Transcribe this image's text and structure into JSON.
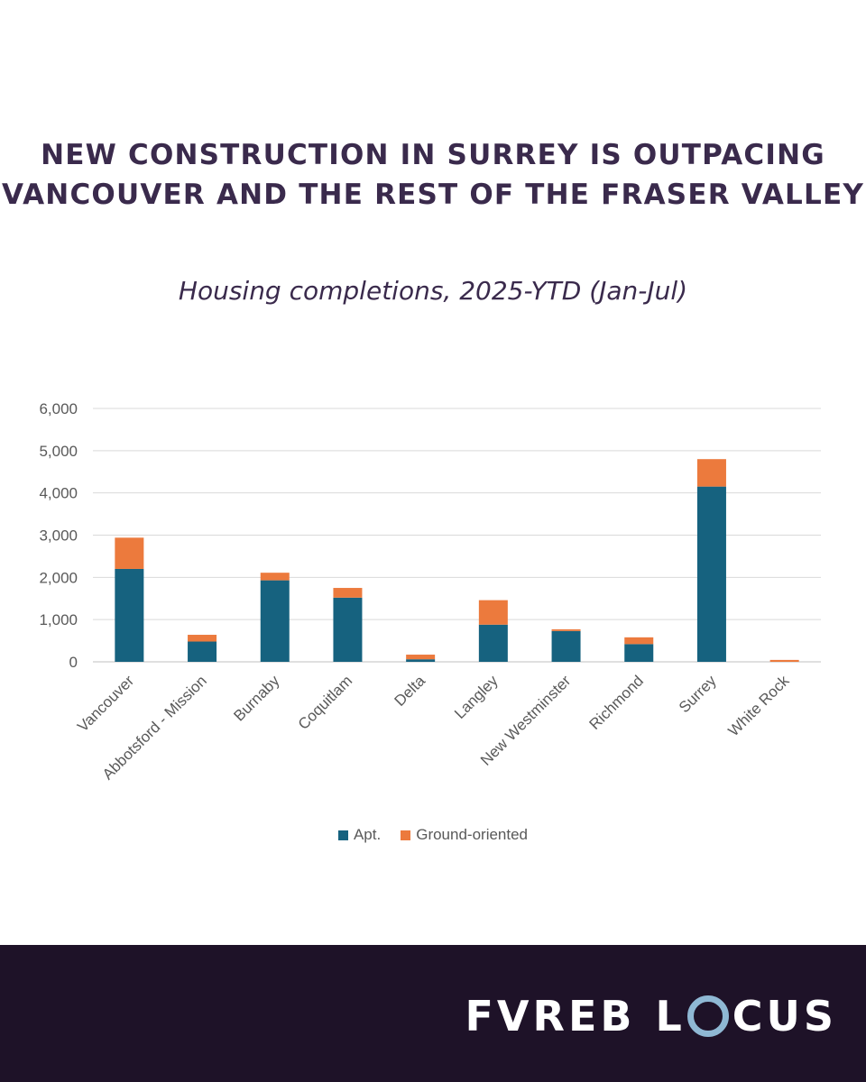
{
  "headline": {
    "line1": "NEW CONSTRUCTION IN SURREY IS OUTPACING",
    "line2": "VANCOUVER AND THE REST OF THE FRASER VALLEY"
  },
  "colors": {
    "apt": "#16627f",
    "ground": "#ec7a3d",
    "grid": "#d9d9d9",
    "axis_text": "#595959",
    "title_text": "#3a2a4c",
    "footer_bg": "#1e1228",
    "logo_accent": "#8fb8d4"
  },
  "chart_data": {
    "type": "bar",
    "stacked": true,
    "title": "Housing completions, 2025-YTD (Jan-Jul)",
    "xlabel": "",
    "ylabel": "",
    "ylim": [
      0,
      6000
    ],
    "yticks": [
      0,
      1000,
      2000,
      3000,
      4000,
      5000,
      6000
    ],
    "ytick_labels": [
      "0",
      "1,000",
      "2,000",
      "3,000",
      "4,000",
      "5,000",
      "6,000"
    ],
    "grid": true,
    "legend_position": "bottom",
    "categories": [
      "Vancouver",
      "Abbotsford - Mission",
      "Burnaby",
      "Coquitlam",
      "Delta",
      "Langley",
      "New Westminster",
      "Richmond",
      "Surrey",
      "White Rock"
    ],
    "series": [
      {
        "name": "Apt.",
        "values": [
          2200,
          480,
          1930,
          1520,
          60,
          880,
          730,
          420,
          4150,
          0
        ]
      },
      {
        "name": "Ground-oriented",
        "values": [
          740,
          160,
          180,
          230,
          110,
          580,
          40,
          160,
          650,
          45
        ]
      }
    ]
  },
  "footer": {
    "brand_left": "FVREB",
    "brand_right_l": "L",
    "brand_right_rest": "CUS"
  }
}
